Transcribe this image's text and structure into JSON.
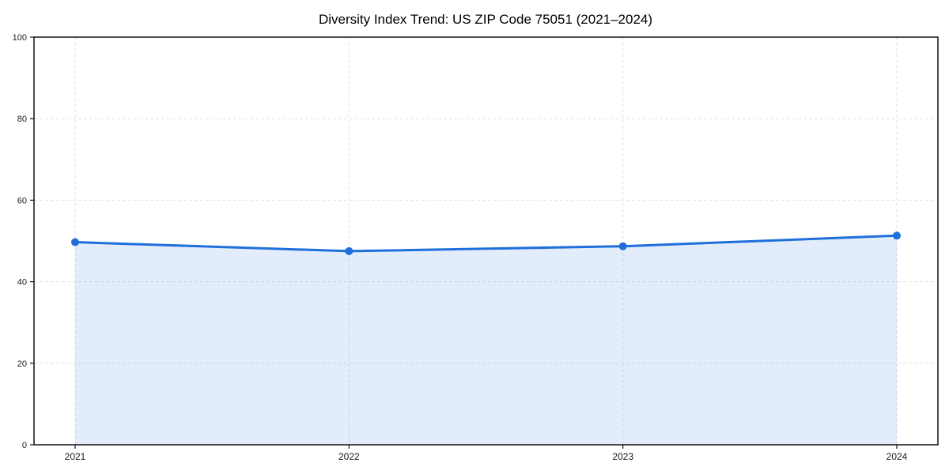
{
  "title": "Diversity Index Trend: US ZIP Code 75051 (2021–2024)",
  "chart_data": {
    "type": "area",
    "title": "Diversity Index Trend: US ZIP Code 75051 (2021–2024)",
    "x": [
      2021,
      2022,
      2023,
      2024
    ],
    "xtick_labels": [
      "2021",
      "2022",
      "2023",
      "2024"
    ],
    "series": [
      {
        "name": "Diversity Index",
        "values": [
          49.7,
          47.5,
          48.7,
          51.3
        ]
      }
    ],
    "xlabel": "",
    "ylabel": "",
    "ylim": [
      0,
      100
    ],
    "yticks": [
      0,
      20,
      40,
      60,
      80,
      100
    ],
    "grid": true,
    "grid_style": "dashed",
    "legend_position": "none",
    "x_padding_frac": 0.0455,
    "line_width": 3,
    "marker_radius": 5,
    "colors": {
      "line": "#1f6fdb",
      "marker": "#1f6fdb",
      "fill": "rgba(31,111,219,0.13)",
      "grid": "#e1e1e1",
      "spine": "#111111",
      "tick_label": "#1a1a1a",
      "title": "#111111",
      "background": "#ffffff"
    }
  }
}
